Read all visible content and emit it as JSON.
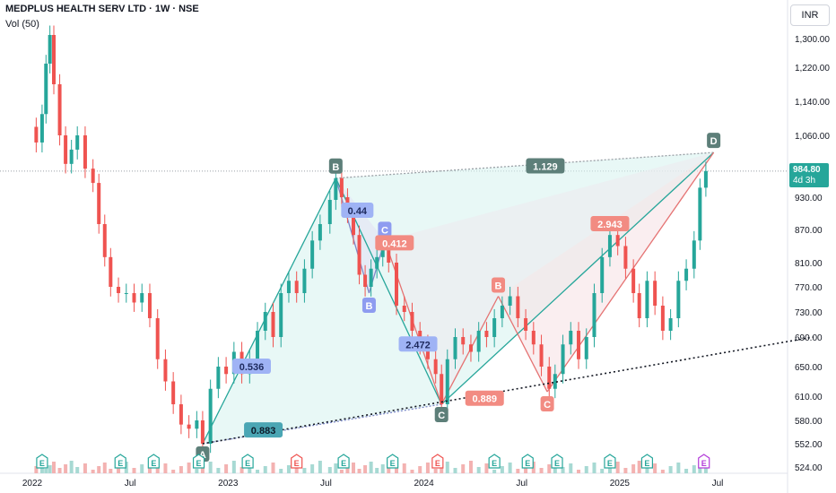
{
  "header": {
    "title": "MEDPLUS HEALTH SERV LTD · 1W · NSE",
    "volume_label": "Vol (50)",
    "currency": "INR"
  },
  "price_tag": {
    "price": "984.80",
    "countdown": "4d 3h"
  },
  "colors": {
    "up": "#26a69a",
    "down": "#ef5350",
    "pattern_fill": "#d6f2ee",
    "pattern_fill_red": "#f6e3e6",
    "trendline": "#131722",
    "dotted_level": "#9aa0a6"
  },
  "chart_data": {
    "type": "candlestick",
    "title": "MEDPLUS HEALTH SERV LTD · 1W · NSE",
    "ylim": [
      524,
      1340
    ],
    "y_ticks": [
      "1,300.00",
      "1,220.00",
      "1,140.00",
      "1,060.00",
      "930.00",
      "870.00",
      "810.00",
      "770.00",
      "730.00",
      "690.00",
      "650.00",
      "610.00",
      "580.00",
      "552.00",
      "524.00"
    ],
    "y_tick_values": [
      1300,
      1220,
      1140,
      1060,
      930,
      870,
      810,
      770,
      730,
      690,
      650,
      610,
      580,
      552,
      524
    ],
    "x_ticks": [
      "2022",
      "Jul",
      "2023",
      "Jul",
      "2024",
      "Jul",
      "2025",
      "Jul"
    ],
    "x_tick_values": [
      2022.0,
      2022.5,
      2023.0,
      2023.5,
      2024.0,
      2024.5,
      2025.0,
      2025.5
    ],
    "last_price": 984.8,
    "price_path": [
      [
        2021.99,
        1080
      ],
      [
        2022.02,
        1045
      ],
      [
        2022.05,
        1110
      ],
      [
        2022.07,
        1230
      ],
      [
        2022.09,
        1310
      ],
      [
        2022.11,
        1180
      ],
      [
        2022.14,
        1060
      ],
      [
        2022.17,
        1000
      ],
      [
        2022.2,
        1030
      ],
      [
        2022.23,
        1060
      ],
      [
        2022.27,
        990
      ],
      [
        2022.31,
        960
      ],
      [
        2022.34,
        880
      ],
      [
        2022.37,
        820
      ],
      [
        2022.4,
        770
      ],
      [
        2022.44,
        760
      ],
      [
        2022.48,
        760
      ],
      [
        2022.52,
        745
      ],
      [
        2022.56,
        760
      ],
      [
        2022.6,
        720
      ],
      [
        2022.64,
        660
      ],
      [
        2022.68,
        630
      ],
      [
        2022.72,
        600
      ],
      [
        2022.76,
        575
      ],
      [
        2022.8,
        570
      ],
      [
        2022.84,
        580
      ],
      [
        2022.87,
        552
      ],
      [
        2022.91,
        620
      ],
      [
        2022.95,
        650
      ],
      [
        2022.99,
        640
      ],
      [
        2023.03,
        670
      ],
      [
        2023.07,
        640
      ],
      [
        2023.11,
        660
      ],
      [
        2023.15,
        700
      ],
      [
        2023.19,
        730
      ],
      [
        2023.23,
        690
      ],
      [
        2023.27,
        760
      ],
      [
        2023.31,
        780
      ],
      [
        2023.35,
        760
      ],
      [
        2023.39,
        800
      ],
      [
        2023.43,
        850
      ],
      [
        2023.47,
        880
      ],
      [
        2023.52,
        925
      ],
      [
        2023.55,
        970
      ],
      [
        2023.58,
        930
      ],
      [
        2023.61,
        900
      ],
      [
        2023.64,
        860
      ],
      [
        2023.67,
        790
      ],
      [
        2023.7,
        770
      ],
      [
        2023.73,
        800
      ],
      [
        2023.76,
        820
      ],
      [
        2023.79,
        850
      ],
      [
        2023.82,
        810
      ],
      [
        2023.86,
        740
      ],
      [
        2023.9,
        730
      ],
      [
        2023.94,
        700
      ],
      [
        2023.98,
        680
      ],
      [
        2024.02,
        660
      ],
      [
        2024.06,
        640
      ],
      [
        2024.09,
        600
      ],
      [
        2024.12,
        660
      ],
      [
        2024.16,
        690
      ],
      [
        2024.2,
        680
      ],
      [
        2024.24,
        670
      ],
      [
        2024.28,
        700
      ],
      [
        2024.32,
        690
      ],
      [
        2024.36,
        720
      ],
      [
        2024.4,
        740
      ],
      [
        2024.44,
        755
      ],
      [
        2024.48,
        720
      ],
      [
        2024.52,
        700
      ],
      [
        2024.56,
        680
      ],
      [
        2024.6,
        650
      ],
      [
        2024.64,
        620
      ],
      [
        2024.67,
        640
      ],
      [
        2024.71,
        680
      ],
      [
        2024.75,
        700
      ],
      [
        2024.79,
        660
      ],
      [
        2024.83,
        690
      ],
      [
        2024.87,
        760
      ],
      [
        2024.91,
        820
      ],
      [
        2024.95,
        860
      ],
      [
        2024.99,
        840
      ],
      [
        2025.03,
        800
      ],
      [
        2025.07,
        760
      ],
      [
        2025.1,
        720
      ],
      [
        2025.14,
        780
      ],
      [
        2025.18,
        740
      ],
      [
        2025.22,
        700
      ],
      [
        2025.26,
        720
      ],
      [
        2025.3,
        780
      ],
      [
        2025.34,
        800
      ],
      [
        2025.38,
        850
      ],
      [
        2025.41,
        950
      ],
      [
        2025.44,
        985
      ]
    ],
    "harmonic_points": [
      {
        "label": "A",
        "x": 2022.87,
        "y": 552
      },
      {
        "label": "B",
        "x": 2023.55,
        "y": 970
      },
      {
        "label": "C",
        "x": 2024.09,
        "y": 600
      },
      {
        "label": "D",
        "x": 2025.48,
        "y": 1024
      }
    ],
    "inner_points": [
      {
        "label": "B",
        "x": 2023.72,
        "y": 760
      },
      {
        "label": "C",
        "x": 2023.8,
        "y": 850
      },
      {
        "label": "B",
        "x": 2024.38,
        "y": 755
      },
      {
        "label": "C",
        "x": 2024.63,
        "y": 616
      }
    ],
    "ratios": [
      {
        "text": "0.536",
        "x": 2023.12,
        "y": 650,
        "style": "blue"
      },
      {
        "text": "0.44",
        "x": 2023.66,
        "y": 905,
        "style": "blue"
      },
      {
        "text": "0.412",
        "x": 2023.85,
        "y": 845,
        "style": "red"
      },
      {
        "text": "2.472",
        "x": 2023.97,
        "y": 680,
        "style": "blue"
      },
      {
        "text": "0.889",
        "x": 2024.31,
        "y": 607,
        "style": "red"
      },
      {
        "text": "2.943",
        "x": 2024.95,
        "y": 880,
        "style": "red"
      },
      {
        "text": "1.129",
        "x": 2024.62,
        "y": 995,
        "style": "slate"
      },
      {
        "text": "0.883",
        "x": 2023.18,
        "y": 568,
        "style": "teal"
      }
    ],
    "trendline": {
      "from": [
        2022.87,
        552
      ],
      "to": [
        2025.99,
        690
      ]
    },
    "earnings_markers": [
      {
        "x": 2022.05,
        "type": "E",
        "color": "up"
      },
      {
        "x": 2022.45,
        "type": "E",
        "color": "up"
      },
      {
        "x": 2022.62,
        "type": "E",
        "color": "up"
      },
      {
        "x": 2022.85,
        "type": "E",
        "color": "up"
      },
      {
        "x": 2023.1,
        "type": "E",
        "color": "up"
      },
      {
        "x": 2023.35,
        "type": "E",
        "color": "down"
      },
      {
        "x": 2023.59,
        "type": "E",
        "color": "up"
      },
      {
        "x": 2023.84,
        "type": "E",
        "color": "up"
      },
      {
        "x": 2024.07,
        "type": "E",
        "color": "down"
      },
      {
        "x": 2024.36,
        "type": "E",
        "color": "up"
      },
      {
        "x": 2024.53,
        "type": "E",
        "color": "up"
      },
      {
        "x": 2024.68,
        "type": "E",
        "color": "up"
      },
      {
        "x": 2024.95,
        "type": "E",
        "color": "up"
      },
      {
        "x": 2025.14,
        "type": "E",
        "color": "up"
      },
      {
        "x": 2025.43,
        "type": "E",
        "color": "future"
      }
    ]
  }
}
